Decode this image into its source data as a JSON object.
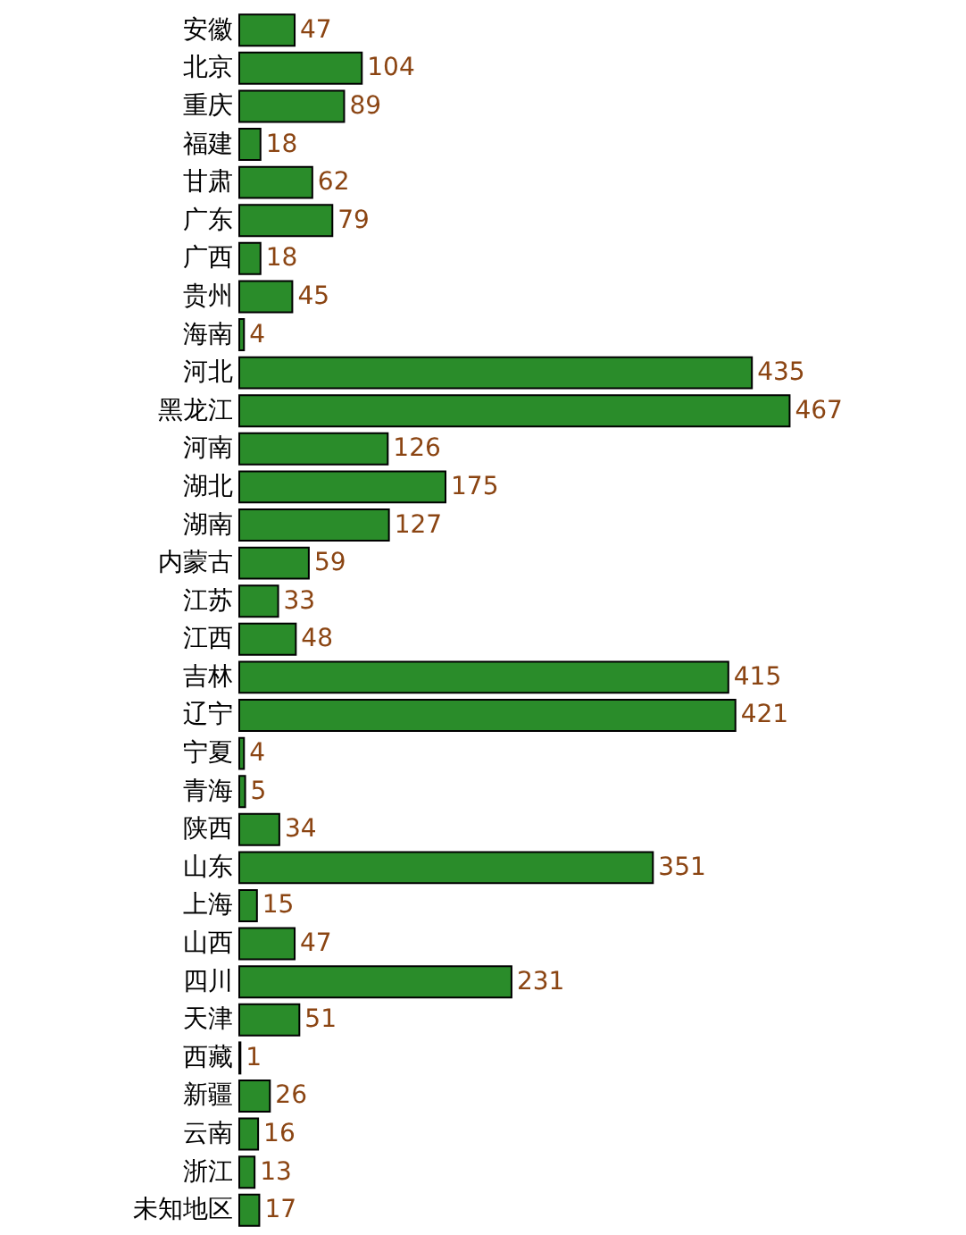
{
  "chart_data": {
    "type": "bar",
    "orientation": "horizontal",
    "data_labels": true,
    "categories": [
      "安徽",
      "北京",
      "重庆",
      "福建",
      "甘肃",
      "广东",
      "广西",
      "贵州",
      "海南",
      "河北",
      "黑龙江",
      "河南",
      "湖北",
      "湖南",
      "内蒙古",
      "江苏",
      "江西",
      "吉林",
      "辽宁",
      "宁夏",
      "青海",
      "陕西",
      "山东",
      "上海",
      "山西",
      "四川",
      "天津",
      "西藏",
      "新疆",
      "云南",
      "浙江",
      "未知地区"
    ],
    "values": [
      47,
      104,
      89,
      18,
      62,
      79,
      18,
      45,
      4,
      435,
      467,
      126,
      175,
      127,
      59,
      33,
      48,
      415,
      421,
      4,
      5,
      34,
      351,
      15,
      47,
      231,
      51,
      1,
      26,
      16,
      13,
      17
    ],
    "color": "#2a8c2a"
  }
}
